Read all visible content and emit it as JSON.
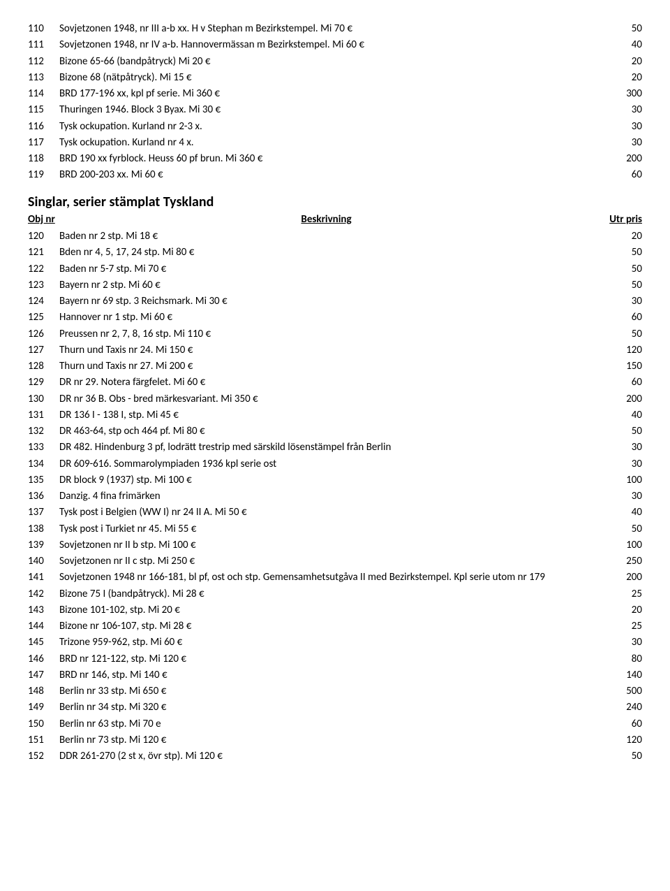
{
  "top_rows": [
    {
      "n": "110",
      "d": "Sovjetzonen 1948, nr III a-b xx. H v Stephan m Bezirkstempel. Mi 70 €",
      "p": "50"
    },
    {
      "n": "111",
      "d": "Sovjetzonen 1948, nr IV a-b. Hannovermässan m Bezirkstempel. Mi 60 €",
      "p": "40"
    },
    {
      "n": "112",
      "d": "Bizone 65-66 (bandpåtryck) Mi 20 €",
      "p": "20"
    },
    {
      "n": "113",
      "d": "Bizone 68 (nätpåtryck). Mi 15 €",
      "p": "20"
    },
    {
      "n": "114",
      "d": "BRD 177-196 xx, kpl pf serie. Mi 360 €",
      "p": "300"
    },
    {
      "n": "115",
      "d": "Thuringen 1946. Block 3 Byax. Mi 30 €",
      "p": "30"
    },
    {
      "n": "116",
      "d": "Tysk ockupation. Kurland nr 2-3 x.",
      "p": "30"
    },
    {
      "n": "117",
      "d": "Tysk ockupation. Kurland nr 4 x.",
      "p": "30"
    },
    {
      "n": "118",
      "d": "BRD 190 xx fyrblock. Heuss 60 pf brun. Mi 360 €",
      "p": "200"
    },
    {
      "n": "119",
      "d": "BRD 200-203 xx. Mi 60 €",
      "p": "60"
    }
  ],
  "section_title": "Singlar, serier stämplat Tyskland",
  "header": {
    "n": "Obj nr",
    "d": "Beskrivning",
    "p": "Utr pris"
  },
  "rows": [
    {
      "n": "120",
      "d": "Baden nr 2 stp. Mi 18 €",
      "p": "20"
    },
    {
      "n": "121",
      "d": "Bden nr 4, 5, 17, 24 stp. Mi 80 €",
      "p": "50"
    },
    {
      "n": "122",
      "d": "Baden nr 5-7 stp. Mi 70 €",
      "p": "50"
    },
    {
      "n": "123",
      "d": "Bayern nr 2 stp. Mi 60 €",
      "p": "50"
    },
    {
      "n": "124",
      "d": "Bayern nr 69 stp. 3 Reichsmark. Mi 30 €",
      "p": "30"
    },
    {
      "n": "125",
      "d": "Hannover nr 1 stp. Mi 60 €",
      "p": "60"
    },
    {
      "n": "126",
      "d": "Preussen nr 2, 7, 8, 16 stp. Mi 110 €",
      "p": "50"
    },
    {
      "n": "127",
      "d": "Thurn und Taxis nr 24. Mi 150 €",
      "p": "120"
    },
    {
      "n": "128",
      "d": "Thurn und Taxis nr 27. Mi 200 €",
      "p": "150"
    },
    {
      "n": "129",
      "d": "DR nr 29. Notera färgfelet. Mi 60 €",
      "p": "60"
    },
    {
      "n": "130",
      "d": "DR nr 36 B. Obs - bred märkesvariant. Mi 350 €",
      "p": "200"
    },
    {
      "n": "131",
      "d": "DR 136 I - 138 I, stp. Mi 45 €",
      "p": "40"
    },
    {
      "n": "132",
      "d": "DR 463-64, stp och 464 pf. Mi 80 €",
      "p": "50"
    },
    {
      "n": "133",
      "d": "DR 482. Hindenburg 3 pf, lodrätt trestrip med särskild lösenstämpel från Berlin",
      "p": "30"
    },
    {
      "n": "134",
      "d": "DR 609-616. Sommarolympiaden 1936 kpl serie ost",
      "p": "30"
    },
    {
      "n": "135",
      "d": "DR block 9 (1937) stp. Mi 100 €",
      "p": "100"
    },
    {
      "n": "136",
      "d": "Danzig. 4 fina frimärken",
      "p": "30"
    },
    {
      "n": "137",
      "d": "Tysk post i Belgien (WW I) nr 24 II A. Mi 50 €",
      "p": "40"
    },
    {
      "n": "138",
      "d": "Tysk post i Turkiet nr 45. Mi 55 €",
      "p": "50"
    },
    {
      "n": "139",
      "d": "Sovjetzonen nr II b stp. Mi 100 €",
      "p": "100"
    },
    {
      "n": "140",
      "d": "Sovjetzonen nr II c stp. Mi 250 €",
      "p": "250"
    },
    {
      "n": "141",
      "d": "Sovjetzonen 1948 nr 166-181, bl pf, ost och stp. Gemensamhetsutgåva II med Bezirkstempel. Kpl serie utom nr 179",
      "p": "200"
    },
    {
      "n": "142",
      "d": "Bizone 75 I (bandpåtryck). Mi 28 €",
      "p": "25"
    },
    {
      "n": "143",
      "d": "Bizone 101-102, stp. Mi 20 €",
      "p": "20"
    },
    {
      "n": "144",
      "d": "Bizone nr 106-107, stp. Mi 28 €",
      "p": "25"
    },
    {
      "n": "145",
      "d": "Trizone 959-962, stp. Mi 60 €",
      "p": "30"
    },
    {
      "n": "146",
      "d": "BRD nr 121-122, stp. Mi 120 €",
      "p": "80"
    },
    {
      "n": "147",
      "d": "BRD nr 146, stp. Mi 140 €",
      "p": "140"
    },
    {
      "n": "148",
      "d": "Berlin nr 33 stp. Mi 650 €",
      "p": "500"
    },
    {
      "n": "149",
      "d": "Berlin nr 34 stp. Mi 320 €",
      "p": "240"
    },
    {
      "n": "150",
      "d": "Berlin nr 63 stp. Mi 70 e",
      "p": "60"
    },
    {
      "n": "151",
      "d": "Berlin nr 73 stp. Mi 120 €",
      "p": "120"
    },
    {
      "n": "152",
      "d": "DDR 261-270 (2 st x, övr stp). Mi 120 €",
      "p": "50"
    }
  ]
}
